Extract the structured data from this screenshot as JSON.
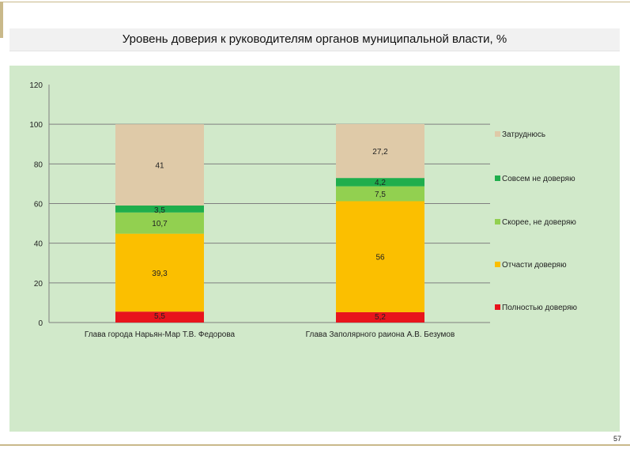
{
  "page": {
    "title": "Уровень доверия к руководителям органов муниципальной власти, %",
    "page_number": "57"
  },
  "colors": {
    "panel": "#d1e9ca",
    "axis": "#7f7f7f",
    "text": "#222222"
  },
  "chart_data": {
    "type": "bar",
    "stacked": true,
    "categories": [
      "Глава города Нарьян-Мар  Т.В. Федорова",
      "Глава Заполярного раиона  А.В. Безумов"
    ],
    "series": [
      {
        "name": "Полностью доверяю",
        "color": "#e8141c",
        "values": [
          5.5,
          5.2
        ],
        "labels": [
          "5,5",
          "5,2"
        ]
      },
      {
        "name": "Отчасти доверяю",
        "color": "#fbbf00",
        "values": [
          39.3,
          56
        ],
        "labels": [
          "39,3",
          "56"
        ]
      },
      {
        "name": "Скорее, не доверяю",
        "color": "#92d050",
        "values": [
          10.7,
          7.5
        ],
        "labels": [
          "10,7",
          "7,5"
        ]
      },
      {
        "name": "Совсем не доверяю",
        "color": "#1fae4c",
        "values": [
          3.5,
          4.2
        ],
        "labels": [
          "3,5",
          "4,2"
        ]
      },
      {
        "name": "Затруднюсь",
        "color": "#dfcaa8",
        "values": [
          41,
          27.2
        ],
        "labels": [
          "41",
          "27,2"
        ]
      }
    ],
    "legend_order": [
      "Затруднюсь",
      "Совсем не доверяю",
      "Скорее, не доверяю",
      "Отчасти доверяю",
      "Полностью доверяю"
    ],
    "ylim": [
      0,
      120
    ],
    "yticks": [
      0,
      20,
      40,
      60,
      80,
      100,
      120
    ],
    "ytick_labels": [
      "0",
      "20",
      "40",
      "60",
      "80",
      "100",
      "120"
    ],
    "grid": "horizontal",
    "legend": "right"
  }
}
